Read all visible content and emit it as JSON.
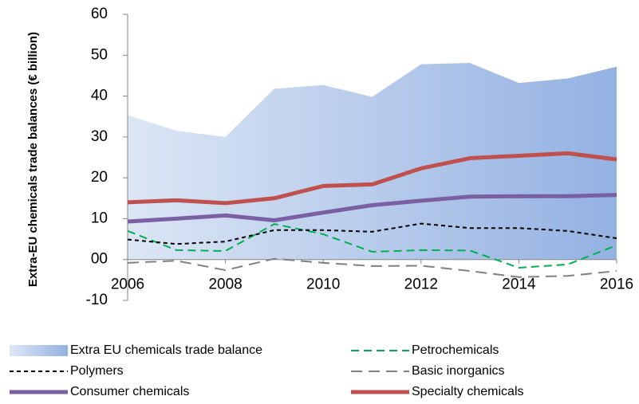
{
  "chart_data": {
    "type": "line",
    "y_label": "Extra-EU chemicals trade balances (€ billion)",
    "x": [
      2006,
      2007,
      2008,
      2009,
      2010,
      2011,
      2012,
      2013,
      2014,
      2015,
      2016
    ],
    "xlim": [
      2006,
      2016
    ],
    "xticks": [
      2006,
      2008,
      2010,
      2012,
      2014,
      2016
    ],
    "ylim": [
      -10,
      60
    ],
    "yticks": [
      -10,
      {
        "value": 0,
        "label": "00"
      },
      10,
      20,
      30,
      40,
      50,
      60
    ],
    "series": [
      {
        "name": "Extra EU chemicals trade balance",
        "kind": "area",
        "color": "#95b3e0",
        "values": [
          35.3,
          31.5,
          30,
          41.8,
          42.7,
          39.8,
          47.8,
          48.1,
          43.2,
          44.3,
          47.2
        ]
      },
      {
        "name": "Petrochemicals",
        "kind": "line",
        "dash": "10,6",
        "color": "#00b050",
        "values": [
          7,
          2.3,
          2.1,
          8.7,
          6.2,
          1.9,
          2.3,
          2.2,
          -2,
          -1.2,
          3.5
        ]
      },
      {
        "name": "Polymers",
        "kind": "line",
        "dash": "5,4",
        "color": "#000000",
        "values": [
          4.9,
          3.8,
          4.4,
          7.2,
          7.2,
          6.8,
          8.8,
          7.7,
          7.7,
          7,
          5.2
        ]
      },
      {
        "name": "Basic inorganics",
        "kind": "line",
        "dash": "14,8",
        "color": "#808080",
        "values": [
          -0.8,
          -0.3,
          -2.6,
          0.2,
          -0.8,
          -1.6,
          -1.5,
          -2.8,
          -4.3,
          -4,
          -2.8
        ]
      },
      {
        "name": "Consumer chemicals",
        "kind": "line",
        "color": "#7b5fa3",
        "values": [
          9.3,
          10,
          10.8,
          9.6,
          11.5,
          13.3,
          14.4,
          15.4,
          15.5,
          15.5,
          15.8
        ]
      },
      {
        "name": "Specialty chemicals",
        "kind": "line",
        "color": "#c0504d",
        "values": [
          14,
          14.5,
          13.8,
          15,
          18,
          18.4,
          22.3,
          24.8,
          25.4,
          26,
          24.5
        ]
      }
    ]
  }
}
